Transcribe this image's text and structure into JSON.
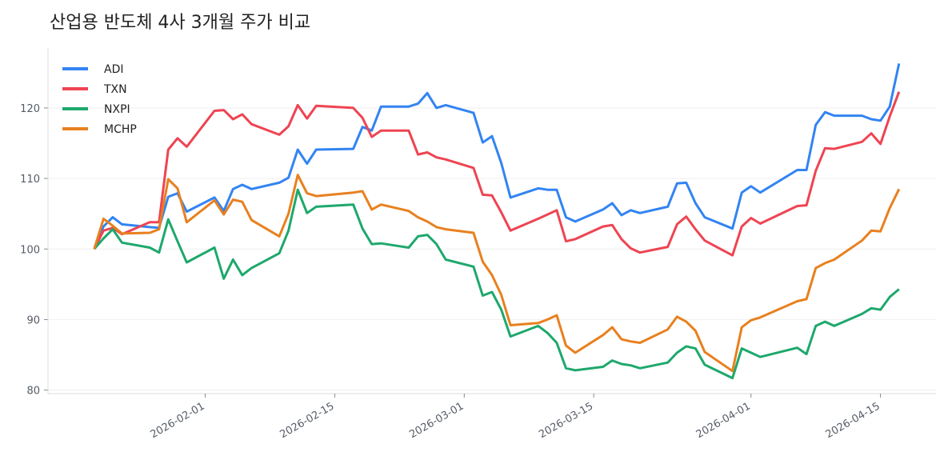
{
  "chart_data": {
    "type": "line",
    "title": "산업용 반도체 4사 3개월 주가 비교",
    "xlabel": "",
    "ylabel": "",
    "ylim": [
      79.5,
      128.5
    ],
    "xlim": [
      "2026-01-15",
      "2026-04-21"
    ],
    "grid": "horizontal",
    "legend": "top-left",
    "yticks": [
      80,
      90,
      100,
      110,
      120
    ],
    "xticks": [
      "2026-02-01",
      "2026-02-15",
      "2026-03-01",
      "2026-03-15",
      "2026-04-01",
      "2026-04-15"
    ],
    "x": [
      "2026-01-20",
      "2026-01-21",
      "2026-01-22",
      "2026-01-23",
      "2026-01-26",
      "2026-01-27",
      "2026-01-28",
      "2026-01-29",
      "2026-01-30",
      "2026-02-02",
      "2026-02-03",
      "2026-02-04",
      "2026-02-05",
      "2026-02-06",
      "2026-02-09",
      "2026-02-10",
      "2026-02-11",
      "2026-02-12",
      "2026-02-13",
      "2026-02-17",
      "2026-02-18",
      "2026-02-19",
      "2026-02-20",
      "2026-02-23",
      "2026-02-24",
      "2026-02-25",
      "2026-02-26",
      "2026-02-27",
      "2026-03-02",
      "2026-03-03",
      "2026-03-04",
      "2026-03-05",
      "2026-03-06",
      "2026-03-09",
      "2026-03-10",
      "2026-03-11",
      "2026-03-12",
      "2026-03-13",
      "2026-03-16",
      "2026-03-17",
      "2026-03-18",
      "2026-03-19",
      "2026-03-20",
      "2026-03-23",
      "2026-03-24",
      "2026-03-25",
      "2026-03-26",
      "2026-03-27",
      "2026-03-30",
      "2026-03-31",
      "2026-04-01",
      "2026-04-02",
      "2026-04-06",
      "2026-04-07",
      "2026-04-08",
      "2026-04-09",
      "2026-04-10",
      "2026-04-13",
      "2026-04-14",
      "2026-04-15",
      "2026-04-16",
      "2026-04-17"
    ],
    "series": [
      {
        "name": "ADI",
        "color": "#3284f2",
        "values": [
          100,
          103.2,
          104.5,
          103.5,
          103.1,
          103.0,
          107.4,
          107.9,
          105.3,
          107.3,
          105.4,
          108.5,
          109.1,
          108.5,
          109.4,
          110.1,
          114.1,
          112.1,
          114.1,
          114.2,
          117.3,
          116.8,
          120.2,
          120.2,
          120.6,
          122.1,
          120.0,
          120.4,
          119.3,
          115.1,
          116.0,
          112.2,
          107.3,
          108.6,
          108.4,
          108.4,
          104.5,
          103.9,
          105.6,
          106.5,
          104.8,
          105.5,
          105.1,
          106.0,
          109.3,
          109.4,
          106.5,
          104.5,
          102.9,
          108.0,
          108.9,
          108.0,
          111.2,
          111.2,
          117.6,
          119.4,
          118.9,
          118.9,
          118.4,
          118.2,
          120.2,
          126.3
        ]
      },
      {
        "name": "TXN",
        "color": "#ee4452",
        "values": [
          100,
          102.6,
          103.0,
          102.1,
          103.8,
          103.8,
          114.1,
          115.7,
          114.5,
          119.6,
          119.7,
          118.4,
          119.1,
          117.7,
          116.2,
          117.4,
          120.4,
          118.5,
          120.3,
          120.0,
          118.6,
          115.9,
          116.8,
          116.8,
          113.4,
          113.7,
          113.0,
          112.7,
          111.5,
          107.7,
          107.6,
          105.2,
          102.6,
          104.3,
          104.9,
          105.5,
          101.1,
          101.4,
          103.2,
          103.4,
          101.4,
          100.1,
          99.5,
          100.3,
          103.5,
          104.6,
          102.8,
          101.2,
          99.1,
          103.2,
          104.4,
          103.6,
          106.1,
          106.2,
          111.1,
          114.3,
          114.2,
          115.2,
          116.4,
          114.9,
          118.8,
          122.3
        ]
      },
      {
        "name": "NXPI",
        "color": "#1ea86c",
        "values": [
          100,
          101.5,
          102.8,
          100.9,
          100.2,
          99.5,
          104.2,
          101.1,
          98.1,
          100.2,
          95.8,
          98.5,
          96.3,
          97.3,
          99.4,
          102.6,
          108.4,
          105.1,
          106.0,
          106.3,
          102.9,
          100.7,
          100.8,
          100.2,
          101.8,
          102.0,
          100.7,
          98.5,
          97.5,
          93.4,
          93.9,
          91.4,
          87.6,
          89.1,
          88.1,
          86.7,
          83.1,
          82.8,
          83.3,
          84.2,
          83.7,
          83.5,
          83.1,
          83.9,
          85.3,
          86.2,
          85.9,
          83.6,
          81.7,
          85.9,
          85.3,
          84.7,
          86.0,
          85.1,
          89.1,
          89.7,
          89.1,
          90.8,
          91.6,
          91.4,
          93.2,
          94.3
        ]
      },
      {
        "name": "MCHP",
        "color": "#e8801f",
        "values": [
          100,
          104.3,
          103.3,
          102.2,
          102.3,
          102.8,
          109.9,
          108.6,
          103.8,
          106.9,
          104.9,
          107.0,
          106.7,
          104.1,
          101.8,
          105.0,
          110.5,
          107.9,
          107.5,
          108.0,
          108.2,
          105.6,
          106.3,
          105.4,
          104.5,
          103.9,
          103.1,
          102.8,
          102.3,
          98.2,
          96.3,
          93.5,
          89.2,
          89.5,
          90.0,
          90.6,
          86.3,
          85.3,
          87.8,
          88.9,
          87.2,
          86.9,
          86.7,
          88.6,
          90.4,
          89.7,
          88.4,
          85.4,
          82.7,
          88.9,
          89.9,
          90.3,
          92.6,
          92.9,
          97.3,
          98.0,
          98.5,
          101.2,
          102.6,
          102.5,
          105.8,
          108.5
        ]
      }
    ]
  }
}
